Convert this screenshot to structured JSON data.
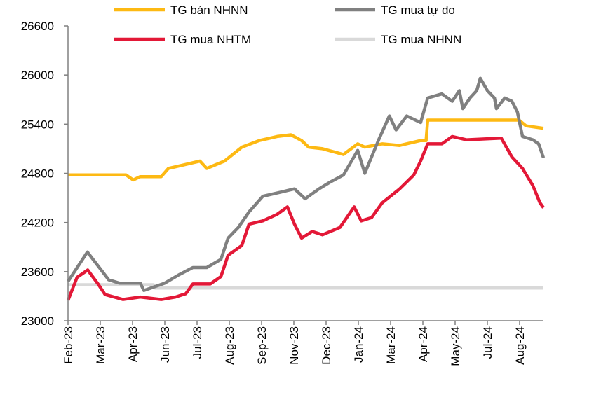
{
  "chart_data": {
    "type": "line",
    "title": "",
    "xlabel": "",
    "ylabel": "",
    "ylim": [
      23000,
      26600
    ],
    "yticks": [
      23000,
      23600,
      24200,
      24800,
      25400,
      26000,
      26600
    ],
    "x_note": "x = month-tick index from Feb-23 (0) to Aug-24 (14)",
    "xlim": [
      0,
      14.74
    ],
    "xtick_labels": [
      "Feb-23",
      "Mar-23",
      "Apr-23",
      "Jun-23",
      "Jul-23",
      "Aug-23",
      "Sep-23",
      "Nov-23",
      "Dec-23",
      "Jan-24",
      "Mar-24",
      "Apr-24",
      "May-24",
      "Jul-24",
      "Aug-24"
    ],
    "grid": false,
    "legend_placement": "top",
    "series": [
      {
        "name": "TG bán NHNN",
        "color": "#FDB913",
        "points": [
          [
            0,
            24780
          ],
          [
            1.8,
            24780
          ],
          [
            2.02,
            24720
          ],
          [
            2.24,
            24760
          ],
          [
            2.89,
            24760
          ],
          [
            3.11,
            24860
          ],
          [
            4.09,
            24950
          ],
          [
            4.3,
            24860
          ],
          [
            4.85,
            24950
          ],
          [
            5.39,
            25120
          ],
          [
            5.93,
            25200
          ],
          [
            6.48,
            25250
          ],
          [
            6.91,
            25270
          ],
          [
            7.24,
            25200
          ],
          [
            7.46,
            25120
          ],
          [
            7.89,
            25100
          ],
          [
            8.54,
            25030
          ],
          [
            8.98,
            25160
          ],
          [
            9.2,
            25120
          ],
          [
            9.74,
            25160
          ],
          [
            10.28,
            25140
          ],
          [
            10.93,
            25200
          ],
          [
            11.1,
            25200
          ],
          [
            11.15,
            25450
          ],
          [
            13.98,
            25450
          ],
          [
            14.2,
            25380
          ],
          [
            14.74,
            25350
          ]
        ]
      },
      {
        "name": "TG mua tự do",
        "color": "#808080",
        "points": [
          [
            0,
            23480
          ],
          [
            0.6,
            23840
          ],
          [
            0.93,
            23670
          ],
          [
            1.26,
            23500
          ],
          [
            1.59,
            23460
          ],
          [
            2.24,
            23460
          ],
          [
            2.35,
            23370
          ],
          [
            2.57,
            23400
          ],
          [
            3.0,
            23460
          ],
          [
            3.43,
            23560
          ],
          [
            3.87,
            23650
          ],
          [
            4.3,
            23650
          ],
          [
            4.74,
            23750
          ],
          [
            4.96,
            24010
          ],
          [
            5.28,
            24140
          ],
          [
            5.61,
            24330
          ],
          [
            6.04,
            24520
          ],
          [
            6.59,
            24570
          ],
          [
            7.02,
            24610
          ],
          [
            7.35,
            24490
          ],
          [
            7.78,
            24610
          ],
          [
            8.11,
            24690
          ],
          [
            8.54,
            24780
          ],
          [
            8.98,
            25080
          ],
          [
            9.2,
            24800
          ],
          [
            9.63,
            25210
          ],
          [
            9.96,
            25500
          ],
          [
            10.17,
            25330
          ],
          [
            10.5,
            25500
          ],
          [
            10.93,
            25420
          ],
          [
            11.15,
            25720
          ],
          [
            11.59,
            25770
          ],
          [
            11.91,
            25680
          ],
          [
            12.13,
            25810
          ],
          [
            12.24,
            25590
          ],
          [
            12.46,
            25720
          ],
          [
            12.67,
            25810
          ],
          [
            12.78,
            25960
          ],
          [
            13.0,
            25810
          ],
          [
            13.22,
            25720
          ],
          [
            13.28,
            25590
          ],
          [
            13.54,
            25720
          ],
          [
            13.76,
            25680
          ],
          [
            13.93,
            25550
          ],
          [
            14.09,
            25250
          ],
          [
            14.41,
            25210
          ],
          [
            14.59,
            25160
          ],
          [
            14.74,
            24990
          ]
        ]
      },
      {
        "name": "TG mua NHTM",
        "color": "#E31837",
        "points": [
          [
            0,
            23250
          ],
          [
            0.28,
            23530
          ],
          [
            0.61,
            23620
          ],
          [
            0.93,
            23450
          ],
          [
            1.15,
            23320
          ],
          [
            1.7,
            23260
          ],
          [
            2.24,
            23290
          ],
          [
            2.89,
            23260
          ],
          [
            3.33,
            23290
          ],
          [
            3.65,
            23330
          ],
          [
            3.87,
            23450
          ],
          [
            4.41,
            23450
          ],
          [
            4.74,
            23540
          ],
          [
            4.96,
            23800
          ],
          [
            5.39,
            23920
          ],
          [
            5.61,
            24180
          ],
          [
            6.04,
            24220
          ],
          [
            6.48,
            24300
          ],
          [
            6.8,
            24390
          ],
          [
            7.02,
            24180
          ],
          [
            7.24,
            24010
          ],
          [
            7.57,
            24090
          ],
          [
            7.89,
            24050
          ],
          [
            8.43,
            24140
          ],
          [
            8.87,
            24390
          ],
          [
            9.09,
            24220
          ],
          [
            9.41,
            24260
          ],
          [
            9.74,
            24440
          ],
          [
            10.28,
            24610
          ],
          [
            10.72,
            24780
          ],
          [
            10.93,
            24950
          ],
          [
            11.15,
            25160
          ],
          [
            11.59,
            25160
          ],
          [
            11.91,
            25250
          ],
          [
            12.35,
            25210
          ],
          [
            13.43,
            25230
          ],
          [
            13.76,
            25000
          ],
          [
            14.09,
            24860
          ],
          [
            14.41,
            24650
          ],
          [
            14.63,
            24440
          ],
          [
            14.74,
            24380
          ]
        ]
      },
      {
        "name": "TG mua NHNN",
        "color": "#D9D9D9",
        "points": [
          [
            0,
            23440
          ],
          [
            2.65,
            23440
          ],
          [
            2.7,
            23400
          ],
          [
            14.74,
            23400
          ]
        ]
      }
    ]
  }
}
